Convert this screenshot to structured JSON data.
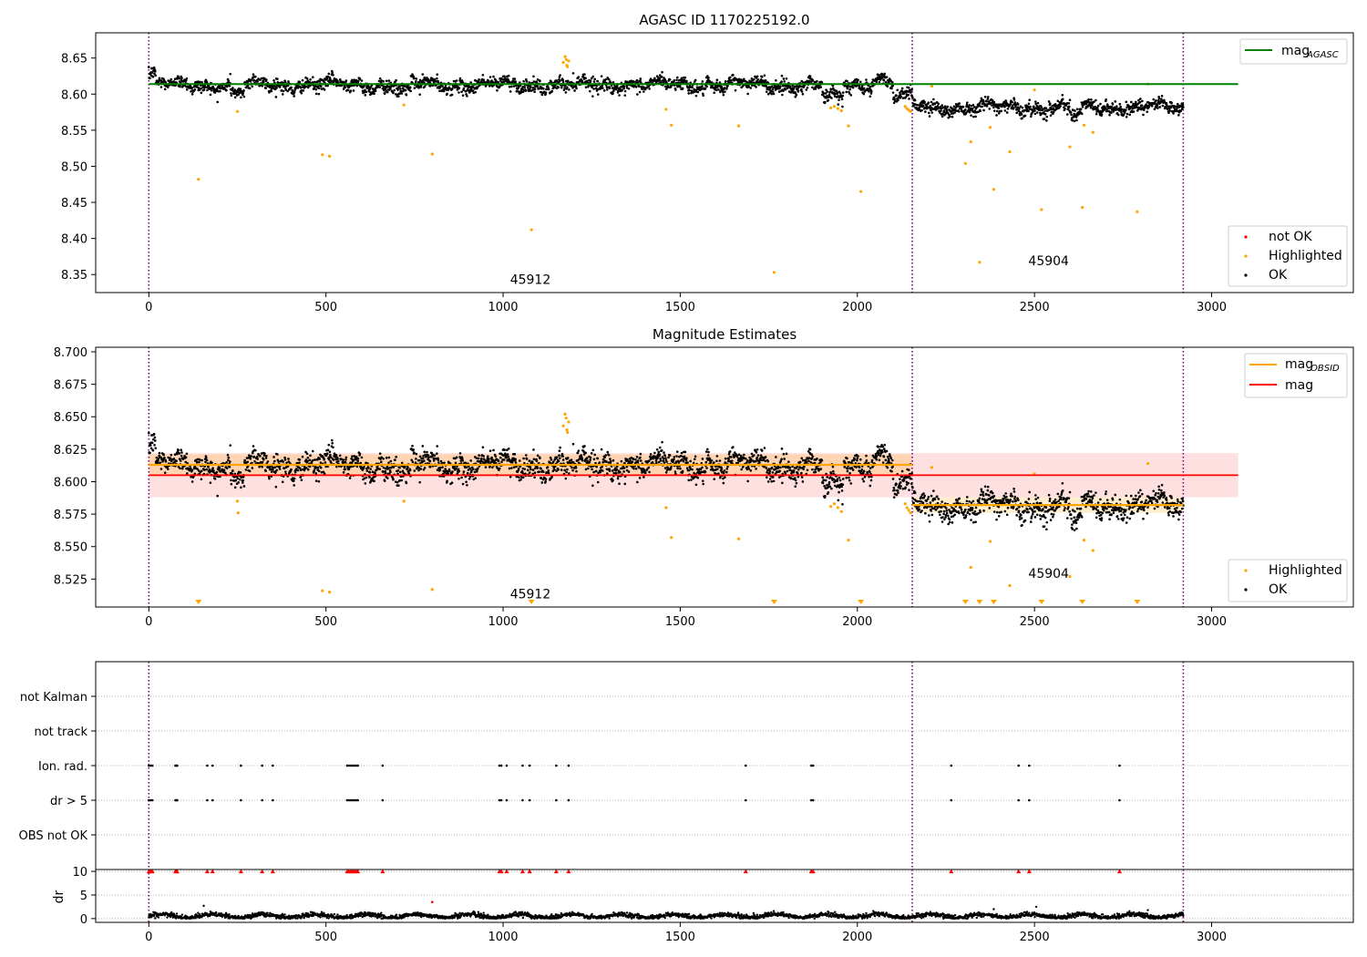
{
  "colors": {
    "ok": "#000000",
    "highlighted": "#ffa500",
    "not_ok": "#ff0000",
    "agasc_line": "#008000",
    "obsid_line": "#ffa500",
    "mag_line": "#ff0000",
    "obs_boundary": "#800080",
    "grid": "#b0b0b0"
  },
  "chart_data": [
    {
      "type": "scatter",
      "title": "AGASC ID 1170225192.0",
      "xlabel": "",
      "ylabel": "",
      "xlim": [
        -150,
        3400
      ],
      "ylim": [
        8.325,
        8.685
      ],
      "xticks": [
        0,
        500,
        1000,
        1500,
        2000,
        2500,
        3000
      ],
      "yticks": [
        8.35,
        8.4,
        8.45,
        8.5,
        8.55,
        8.6,
        8.65
      ],
      "grid": false,
      "obs_boundaries": [
        0,
        2155,
        2920
      ],
      "observations": [
        {
          "label": "45912",
          "x_start": 0,
          "x_end": 2155,
          "mean": 8.613,
          "std": 0.0095
        },
        {
          "label": "45904",
          "x_start": 2155,
          "x_end": 2920,
          "mean": 8.582,
          "std": 0.006
        }
      ],
      "reference_lines": [
        {
          "name": "mag",
          "subscript": "AGASC",
          "value": 8.614,
          "x": [
            0,
            3075
          ]
        }
      ],
      "legends": [
        {
          "placement": "upper right",
          "entries": [
            {
              "label": "mag",
              "subscript": "AGASC",
              "kind": "line",
              "color": "#008000"
            }
          ]
        },
        {
          "placement": "lower right",
          "entries": [
            {
              "label": "not OK",
              "kind": "dot",
              "color": "#ff0000"
            },
            {
              "label": "Highlighted",
              "kind": "dot",
              "color": "#ffa500"
            },
            {
              "label": "OK",
              "kind": "dot",
              "color": "#000000"
            }
          ]
        }
      ],
      "series": [
        {
          "name": "OK",
          "note": "about 2900 samples, one per frame index 0–2920, scatter around the observation mean"
        },
        {
          "name": "Highlighted",
          "points": [
            [
              140,
              8.482
            ],
            [
              250,
              8.576
            ],
            [
              490,
              8.516
            ],
            [
              510,
              8.514
            ],
            [
              720,
              8.585
            ],
            [
              800,
              8.517
            ],
            [
              1080,
              8.412
            ],
            [
              1170,
              8.644
            ],
            [
              1175,
              8.652
            ],
            [
              1178,
              8.648
            ],
            [
              1180,
              8.64
            ],
            [
              1182,
              8.638
            ],
            [
              1185,
              8.646
            ],
            [
              1460,
              8.579
            ],
            [
              1475,
              8.557
            ],
            [
              1665,
              8.556
            ],
            [
              1765,
              8.353
            ],
            [
              1925,
              8.581
            ],
            [
              1935,
              8.583
            ],
            [
              1945,
              8.58
            ],
            [
              1955,
              8.577
            ],
            [
              1975,
              8.556
            ],
            [
              2010,
              8.465
            ],
            [
              2135,
              8.583
            ],
            [
              2140,
              8.58
            ],
            [
              2145,
              8.578
            ],
            [
              2150,
              8.576
            ],
            [
              2210,
              8.611
            ],
            [
              2305,
              8.504
            ],
            [
              2320,
              8.534
            ],
            [
              2345,
              8.367
            ],
            [
              2375,
              8.554
            ],
            [
              2385,
              8.468
            ],
            [
              2430,
              8.52
            ],
            [
              2500,
              8.606
            ],
            [
              2520,
              8.44
            ],
            [
              2600,
              8.527
            ],
            [
              2635,
              8.443
            ],
            [
              2640,
              8.557
            ],
            [
              2665,
              8.547
            ],
            [
              2790,
              8.437
            ],
            [
              2820,
              8.614
            ]
          ]
        }
      ],
      "annotations": [
        {
          "text": "45912",
          "x": 1077,
          "y": 8.337
        },
        {
          "text": "45904",
          "x": 2540,
          "y": 8.363
        }
      ]
    },
    {
      "type": "scatter",
      "title": "Magnitude Estimates",
      "xlabel": "",
      "ylabel": "",
      "xlim": [
        -150,
        3400
      ],
      "ylim": [
        8.5035,
        8.7035
      ],
      "xticks": [
        0,
        500,
        1000,
        1500,
        2000,
        2500,
        3000
      ],
      "yticks": [
        8.525,
        8.55,
        8.575,
        8.6,
        8.625,
        8.65,
        8.675,
        8.7
      ],
      "grid": false,
      "obs_boundaries": [
        0,
        2155,
        2920
      ],
      "mag": {
        "value": 8.605,
        "band": [
          8.588,
          8.622
        ],
        "x": [
          0,
          3075
        ]
      },
      "mag_obsid": [
        {
          "x": [
            0,
            2155
          ],
          "value": 8.613,
          "band": [
            8.604,
            8.621
          ]
        },
        {
          "x": [
            2155,
            2920
          ],
          "value": 8.582,
          "band": [
            8.576,
            8.588
          ]
        }
      ],
      "legends": [
        {
          "placement": "upper right",
          "entries": [
            {
              "label": "mag",
              "subscript": "OBSID",
              "kind": "line",
              "color": "#ffa500"
            },
            {
              "label": "mag",
              "kind": "line",
              "color": "#ff0000"
            }
          ]
        },
        {
          "placement": "lower right",
          "entries": [
            {
              "label": "Highlighted",
              "kind": "dot",
              "color": "#ffa500"
            },
            {
              "label": "OK",
              "kind": "dot",
              "color": "#000000"
            }
          ]
        }
      ],
      "series": [
        {
          "name": "OK",
          "note": "about 2900 samples, one per frame index 0–2920"
        },
        {
          "name": "Highlighted",
          "points": [
            [
              250,
              8.585
            ],
            [
              252,
              8.576
            ],
            [
              490,
              8.516
            ],
            [
              510,
              8.515
            ],
            [
              720,
              8.585
            ],
            [
              800,
              8.517
            ],
            [
              1170,
              8.643
            ],
            [
              1175,
              8.652
            ],
            [
              1178,
              8.649
            ],
            [
              1180,
              8.64
            ],
            [
              1182,
              8.638
            ],
            [
              1185,
              8.646
            ],
            [
              1460,
              8.58
            ],
            [
              1475,
              8.557
            ],
            [
              1665,
              8.556
            ],
            [
              1925,
              8.581
            ],
            [
              1935,
              8.583
            ],
            [
              1945,
              8.58
            ],
            [
              1955,
              8.577
            ],
            [
              1975,
              8.555
            ],
            [
              2135,
              8.583
            ],
            [
              2140,
              8.58
            ],
            [
              2145,
              8.578
            ],
            [
              2150,
              8.576
            ],
            [
              2210,
              8.611
            ],
            [
              2320,
              8.534
            ],
            [
              2375,
              8.554
            ],
            [
              2430,
              8.52
            ],
            [
              2500,
              8.606
            ],
            [
              2600,
              8.527
            ],
            [
              2640,
              8.555
            ],
            [
              2665,
              8.547
            ],
            [
              2820,
              8.614
            ]
          ]
        },
        {
          "name": "Highlighted below range",
          "marker": "triangle-down",
          "x": [
            140,
            1080,
            1765,
            2010,
            2305,
            2345,
            2385,
            2520,
            2635,
            2790
          ]
        }
      ],
      "annotations": [
        {
          "text": "45912",
          "x": 1077,
          "y": 8.51
        },
        {
          "text": "45904",
          "x": 2540,
          "y": 8.526
        }
      ]
    },
    {
      "type": "scatter",
      "title": "",
      "xlim": [
        -150,
        3400
      ],
      "categories": [
        "not Kalman",
        "not track",
        "Ion. rad.",
        "dr > 5",
        "OBS not OK"
      ],
      "grid": "y dotted",
      "obs_boundaries": [
        0,
        2155,
        2920
      ],
      "flags": {
        "Ion. rad.": [
          0,
          5,
          10,
          75,
          78,
          80,
          165,
          180,
          260,
          320,
          350,
          560,
          565,
          570,
          575,
          580,
          585,
          590,
          660,
          990,
          995,
          1010,
          1055,
          1075,
          1150,
          1185,
          1685,
          1870,
          1875,
          2265,
          2455,
          2485,
          2740
        ],
        "dr > 5": [
          0,
          5,
          10,
          75,
          78,
          80,
          165,
          180,
          260,
          320,
          350,
          560,
          565,
          570,
          575,
          580,
          585,
          590,
          660,
          990,
          995,
          1010,
          1055,
          1075,
          1150,
          1185,
          1685,
          1870,
          1875,
          2265,
          2455,
          2485,
          2740
        ],
        "not Kalman": [],
        "not track": [],
        "OBS not OK": []
      }
    },
    {
      "type": "scatter",
      "title": "",
      "xlabel": "",
      "ylabel": "dr",
      "xlim": [
        -150,
        3400
      ],
      "ylim": [
        -0.8,
        10.4
      ],
      "xticks": [
        0,
        500,
        1000,
        1500,
        2000,
        2500,
        3000
      ],
      "yticks": [
        0,
        5,
        10
      ],
      "grid": "y dotted",
      "obs_boundaries": [
        0,
        2155,
        2920
      ],
      "series": [
        {
          "name": "OK",
          "note": "dr values mostly 0–1.5 for every frame"
        },
        {
          "name": "not OK (clipped at 10)",
          "x": [
            0,
            5,
            10,
            75,
            78,
            80,
            165,
            180,
            260,
            320,
            350,
            560,
            565,
            570,
            575,
            580,
            585,
            590,
            660,
            990,
            995,
            1010,
            1055,
            1075,
            1150,
            1185,
            1685,
            1870,
            1875,
            2265,
            2455,
            2485,
            2740
          ],
          "y": 10
        },
        {
          "name": "not OK",
          "points": [
            [
              800,
              3.5
            ]
          ]
        },
        {
          "name": "OK outliers",
          "points": [
            [
              155,
              2.7
            ],
            [
              2385,
              2.0
            ],
            [
              2505,
              2.5
            ],
            [
              2820,
              1.8
            ]
          ]
        }
      ]
    }
  ]
}
